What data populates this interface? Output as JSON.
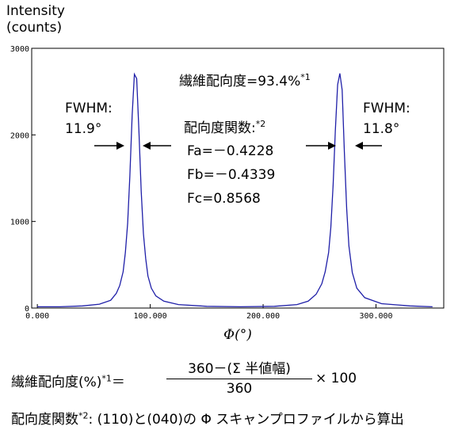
{
  "chart_data": {
    "type": "line",
    "ylabel": [
      "Intensity",
      "(counts)"
    ],
    "xlabel": "Φ(°)",
    "xlim": [
      -5,
      360
    ],
    "ylim": [
      0,
      3000
    ],
    "x_ticks": [
      0,
      100,
      200,
      300
    ],
    "x_tick_labels": [
      "0.000",
      "100.000",
      "200.000",
      "300.000"
    ],
    "y_ticks": [
      0,
      1000,
      2000,
      3000
    ],
    "y_tick_labels": [
      "0",
      "1000",
      "2000",
      "3000"
    ],
    "grid": false,
    "line_color": "#1f1fa8",
    "series": [
      {
        "x": [
          0,
          20,
          40,
          55,
          65,
          70,
          73,
          76,
          78,
          80,
          82,
          84,
          86,
          88,
          90,
          92,
          94,
          96,
          98,
          101,
          105,
          112,
          125,
          150,
          180,
          210,
          230,
          240,
          247,
          252,
          255,
          258,
          260,
          262,
          264,
          266,
          268,
          270,
          272,
          274,
          276,
          279,
          283,
          290,
          305,
          330,
          350
        ],
        "y": [
          15,
          15,
          25,
          45,
          90,
          170,
          260,
          420,
          640,
          980,
          1530,
          2230,
          2700,
          2650,
          2050,
          1350,
          860,
          570,
          370,
          230,
          140,
          80,
          40,
          20,
          15,
          20,
          40,
          80,
          160,
          280,
          420,
          640,
          930,
          1420,
          2050,
          2580,
          2710,
          2520,
          1800,
          1150,
          720,
          410,
          230,
          120,
          50,
          25,
          15
        ]
      }
    ],
    "annotations": {
      "orientation_degree": "繊維配向度=93.4%",
      "orientation_degree_sup": "*1",
      "function_title": "配向度関数:",
      "function_title_sup": "*2",
      "fa": "Fa=－0.4228",
      "fb": "Fb=－0.4339",
      "fc": "Fc=0.8568",
      "left_fwhm_label": "FWHM:",
      "left_fwhm_value": "11.9°",
      "right_fwhm_label": "FWHM:",
      "right_fwhm_value": "11.8°"
    }
  },
  "formula": {
    "lhs": "繊維配向度(%)",
    "lhs_sup": "*1",
    "equals": "＝",
    "numerator": "360－(Σ 半値幅)",
    "denominator": "360",
    "times": "× 100"
  },
  "footnote": {
    "prefix": "配向度関数",
    "sup": "*2",
    "text": ": (110)と(040)の Φ スキャンプロファイルから算出"
  }
}
